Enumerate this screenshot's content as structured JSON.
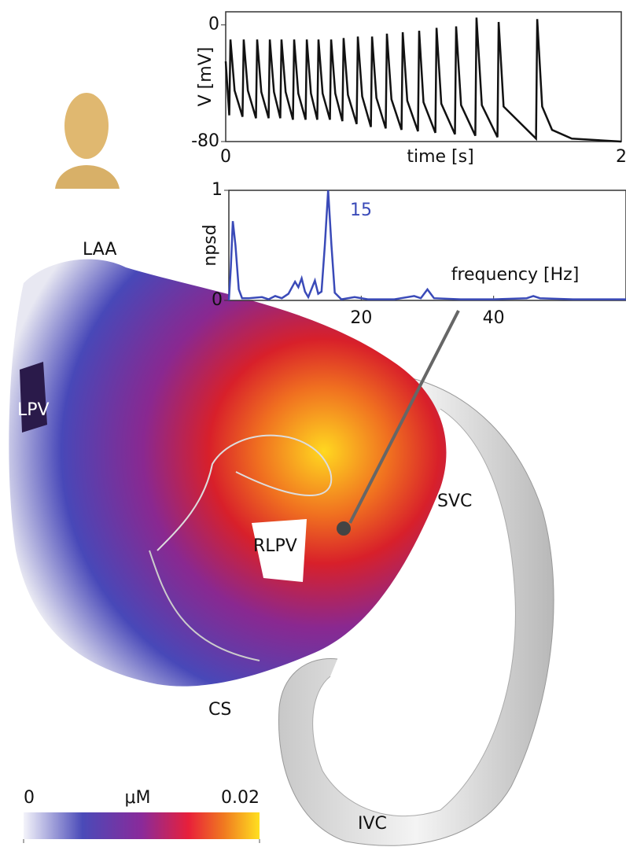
{
  "chart_data": [
    {
      "type": "line",
      "xlabel": "time [s]",
      "ylabel": "V [mV]",
      "x": [
        0,
        0.018,
        0.024,
        0.045,
        0.085,
        0.091,
        0.112,
        0.153,
        0.159,
        0.18,
        0.217,
        0.223,
        0.244,
        0.276,
        0.282,
        0.303,
        0.34,
        0.346,
        0.367,
        0.404,
        0.41,
        0.431,
        0.463,
        0.469,
        0.49,
        0.527,
        0.533,
        0.554,
        0.59,
        0.596,
        0.618,
        0.662,
        0.668,
        0.69,
        0.734,
        0.74,
        0.762,
        0.809,
        0.815,
        0.838,
        0.889,
        0.895,
        0.918,
        0.972,
        0.978,
        1.0,
        1.06,
        1.066,
        1.09,
        1.159,
        1.165,
        1.19,
        1.262,
        1.268,
        1.295,
        1.374,
        1.38,
        1.405,
        1.569,
        1.575,
        1.6,
        1.65,
        1.75,
        2
      ],
      "series": [
        {
          "color": "#111111",
          "values": [
            -25,
            -62,
            -10,
            -45,
            -63,
            -10,
            -45,
            -64,
            -10,
            -46,
            -64,
            -10,
            -46,
            -64,
            -10,
            -46,
            -65,
            -10,
            -47,
            -65,
            -10,
            -47,
            -65,
            -10,
            -47,
            -65,
            -10,
            -47,
            -66,
            -9,
            -48,
            -68,
            -8,
            -49,
            -70,
            -8,
            -50,
            -71,
            -6,
            -51,
            -72,
            -5,
            -52,
            -73,
            -4,
            -53,
            -74,
            -2,
            -54,
            -75,
            -1,
            -55,
            -76,
            5,
            -55,
            -77,
            2,
            -56,
            -78,
            4,
            -56,
            -72,
            -78,
            -80
          ]
        }
      ],
      "xlim": [
        0,
        2
      ],
      "xticks": [
        0,
        2
      ],
      "ylim": [
        -80,
        9
      ],
      "yticks": [
        -80,
        0
      ]
    },
    {
      "type": "line",
      "xlabel": "frequency [Hz]",
      "ylabel": "npsd",
      "annotation": "15",
      "x": [
        0,
        0.3,
        0.6,
        1,
        1.5,
        2,
        3,
        5,
        6,
        7,
        8,
        9,
        10,
        10.5,
        11,
        11.5,
        12,
        13,
        13.5,
        14,
        14.5,
        15,
        15.5,
        16,
        17,
        19,
        21,
        25,
        28,
        29,
        30,
        31,
        35,
        40,
        45,
        46,
        47,
        52,
        60
      ],
      "series": [
        {
          "color": "#3a4ab8",
          "values": [
            0,
            0.3,
            0.72,
            0.5,
            0.1,
            0.02,
            0.02,
            0.03,
            0.01,
            0.04,
            0.02,
            0.06,
            0.17,
            0.12,
            0.2,
            0.08,
            0.03,
            0.18,
            0.06,
            0.08,
            0.5,
            1,
            0.5,
            0.07,
            0.01,
            0.03,
            0.01,
            0.01,
            0.04,
            0.02,
            0.1,
            0.02,
            0.01,
            0.01,
            0.02,
            0.04,
            0.02,
            0.01,
            0.01
          ]
        }
      ],
      "xlim": [
        0,
        60
      ],
      "xticks": [
        20,
        40
      ],
      "ylim": [
        0,
        1
      ],
      "yticks": [
        0,
        1
      ]
    }
  ],
  "anatomy_labels": [
    "LAA",
    "LPV",
    "RLPV",
    "SVC",
    "CS",
    "IVC"
  ],
  "colorbar": {
    "label": "μM",
    "ticks": [
      0,
      0.02
    ]
  }
}
